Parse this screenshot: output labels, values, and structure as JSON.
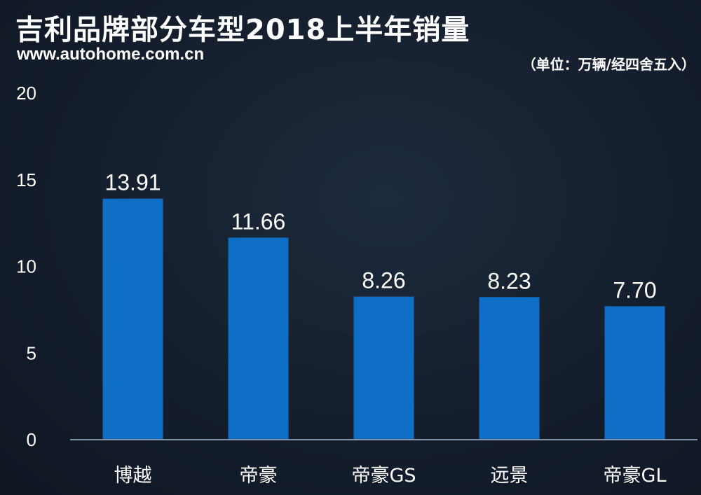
{
  "header": {
    "title": "吉利品牌部分车型2018上半年销量",
    "source": "www.autohome.com.cn",
    "unit": "（单位：万辆/经四舍五入）"
  },
  "colors": {
    "bar": "#0f6fc6",
    "axis": "#7f8ea3",
    "background": "#141d2b"
  },
  "chart_data": {
    "type": "bar",
    "title": "吉利品牌部分车型2018上半年销量",
    "categories": [
      "博越",
      "帝豪",
      "帝豪GS",
      "远景",
      "帝豪GL"
    ],
    "values": [
      13.91,
      11.66,
      8.26,
      8.23,
      7.7
    ],
    "value_labels": [
      "13.91",
      "11.66",
      "8.26",
      "8.23",
      "7.70"
    ],
    "ylim": [
      0,
      20
    ],
    "yticks": [
      "0",
      "5",
      "10",
      "15",
      "20"
    ],
    "grid": false,
    "legend": "none"
  }
}
